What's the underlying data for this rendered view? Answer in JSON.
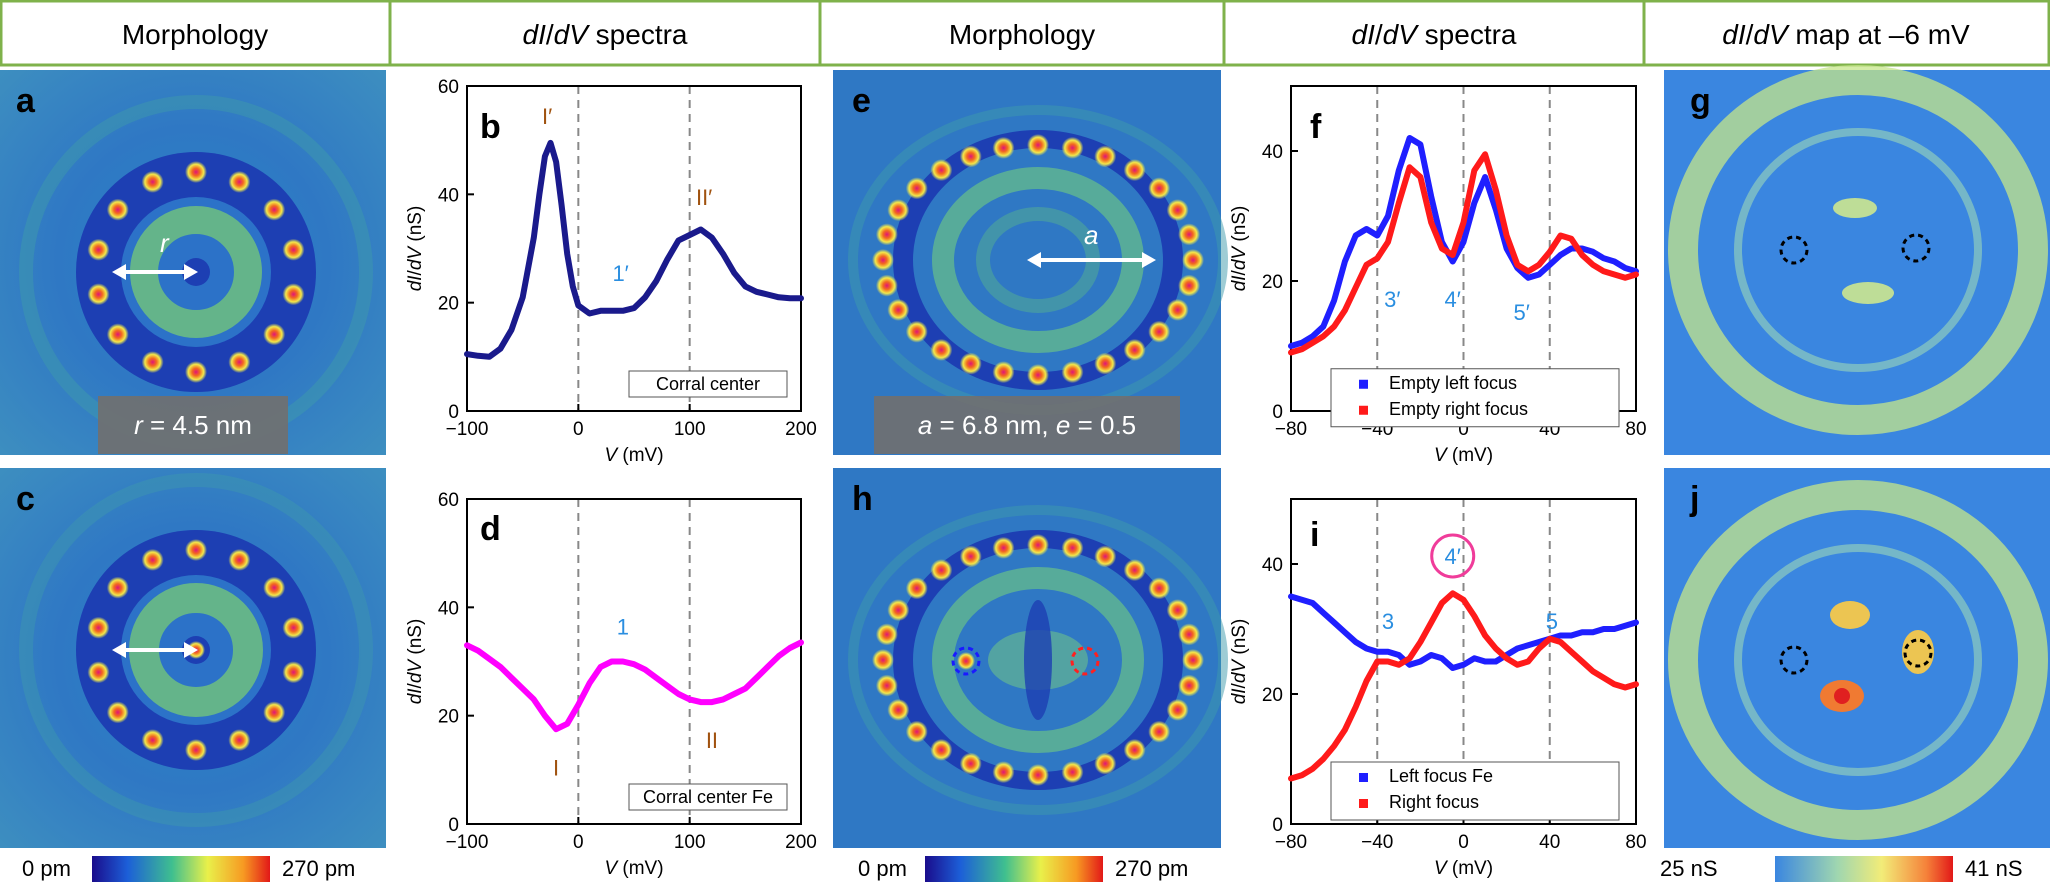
{
  "headers": {
    "col1": "Morphology",
    "col2_a": "dI",
    "col2_b": "/",
    "col2_c": "dV",
    "col2_d": " spectra",
    "col3": "Morphology",
    "col4_a": "dI",
    "col4_b": "/",
    "col4_c": "dV",
    "col4_d": " spectra",
    "col5_a": "dI",
    "col5_b": "/",
    "col5_c": "dV",
    "col5_d": " map at –6 mV"
  },
  "panels": {
    "a": "a",
    "b": "b",
    "c": "c",
    "d": "d",
    "e": "e",
    "f": "f",
    "g": "g",
    "h": "h",
    "i": "i",
    "j": "j"
  },
  "image_labels": {
    "a_r": "r",
    "a_box_1": "r",
    "a_box_2": " = 4.5 nm",
    "e_a": "a",
    "e_box_1": "a",
    "e_box_2": " = 6.8 nm, ",
    "e_box_3": "e",
    "e_box_4": " = 0.5"
  },
  "colorbars": {
    "topo_left": {
      "min": "0 pm",
      "max": "270 pm"
    },
    "topo_mid": {
      "min": "0 pm",
      "max": "270 pm"
    },
    "map": {
      "min": "25 nS",
      "max": "41 nS"
    }
  },
  "chart_data": [
    {
      "id": "b",
      "type": "line",
      "xlabel_italic": "V",
      "xlabel_unit": " (mV)",
      "ylabel_a": "dI",
      "ylabel_b": "/",
      "ylabel_c": "dV",
      "ylabel_unit": " (nS)",
      "xlim": [
        -100,
        200
      ],
      "ylim": [
        0,
        60
      ],
      "xticks": [
        -100,
        0,
        100,
        200
      ],
      "xtick_labels": [
        "−100",
        "0",
        "100",
        "200"
      ],
      "yticks": [
        0,
        20,
        40,
        60
      ],
      "ytick_labels": [
        "0",
        "20",
        "40",
        "60"
      ],
      "vlines": [
        0,
        100
      ],
      "legend": "Corral center",
      "annotations": [
        {
          "text": "I′",
          "x": -28,
          "y": 53,
          "color": "brown"
        },
        {
          "text": "II′",
          "x": 113,
          "y": 38,
          "color": "brown"
        },
        {
          "text": "1′",
          "x": 38,
          "y": 24,
          "color": "blue"
        }
      ],
      "series": [
        {
          "name": "Corral center",
          "color": "#1a1a8c",
          "x": [
            -100,
            -90,
            -80,
            -70,
            -60,
            -50,
            -40,
            -35,
            -30,
            -25,
            -20,
            -15,
            -10,
            -5,
            0,
            10,
            20,
            30,
            40,
            50,
            60,
            70,
            80,
            90,
            100,
            110,
            120,
            130,
            140,
            150,
            160,
            170,
            180,
            190,
            200
          ],
          "y": [
            10.5,
            10.2,
            10,
            11.5,
            15,
            21,
            32,
            40,
            47,
            49.5,
            46,
            38,
            29,
            23,
            19.5,
            18,
            18.5,
            18.5,
            18.5,
            19,
            21,
            24,
            28,
            31.5,
            32.5,
            33.5,
            32,
            29,
            25.5,
            23,
            22,
            21.5,
            21,
            20.8,
            20.8
          ]
        }
      ]
    },
    {
      "id": "d",
      "type": "line",
      "xlabel_italic": "V",
      "xlabel_unit": " (mV)",
      "ylabel_a": "dI",
      "ylabel_b": "/",
      "ylabel_c": "dV",
      "ylabel_unit": " (nS)",
      "xlim": [
        -100,
        200
      ],
      "ylim": [
        0,
        60
      ],
      "xticks": [
        -100,
        0,
        100,
        200
      ],
      "xtick_labels": [
        "−100",
        "0",
        "100",
        "200"
      ],
      "yticks": [
        0,
        20,
        40,
        60
      ],
      "ytick_labels": [
        "0",
        "20",
        "40",
        "60"
      ],
      "vlines": [
        0,
        100
      ],
      "legend": "Corral center Fe",
      "annotations": [
        {
          "text": "I",
          "x": -20,
          "y": 9,
          "color": "brown"
        },
        {
          "text": "1",
          "x": 40,
          "y": 35,
          "color": "blue"
        },
        {
          "text": "II",
          "x": 120,
          "y": 14,
          "color": "brown"
        }
      ],
      "series": [
        {
          "name": "Corral center Fe",
          "color": "#ff00ff",
          "x": [
            -100,
            -90,
            -80,
            -70,
            -60,
            -50,
            -40,
            -30,
            -20,
            -10,
            0,
            10,
            20,
            30,
            40,
            50,
            60,
            70,
            80,
            90,
            100,
            110,
            120,
            130,
            140,
            150,
            160,
            170,
            180,
            190,
            200
          ],
          "y": [
            33,
            32,
            30.5,
            29,
            27,
            25,
            23,
            20,
            17.5,
            18.5,
            22,
            26,
            29,
            30,
            30,
            29.5,
            28.5,
            27,
            25.5,
            24,
            23,
            22.5,
            22.5,
            23,
            24,
            25,
            27,
            29,
            31,
            32.5,
            33.5
          ]
        }
      ]
    },
    {
      "id": "f",
      "type": "line",
      "xlabel_italic": "V",
      "xlabel_unit": " (mV)",
      "ylabel_a": "dI",
      "ylabel_b": "/",
      "ylabel_c": "dV",
      "ylabel_unit": " (nS)",
      "xlim": [
        -80,
        80
      ],
      "ylim": [
        0,
        50
      ],
      "xticks": [
        -80,
        -40,
        0,
        40,
        80
      ],
      "xtick_labels": [
        "−80",
        "−40",
        "0",
        "40",
        "80"
      ],
      "yticks": [
        0,
        20,
        40
      ],
      "ytick_labels": [
        "0",
        "20",
        "40"
      ],
      "vlines": [
        -40,
        0,
        40
      ],
      "annotations": [
        {
          "text": "3′",
          "x": -33,
          "y": 16,
          "color": "blue"
        },
        {
          "text": "4′",
          "x": -5,
          "y": 16,
          "color": "blue"
        },
        {
          "text": "5′",
          "x": 27,
          "y": 14,
          "color": "blue"
        }
      ],
      "series": [
        {
          "name": "Empty left focus",
          "color": "#1f1fff",
          "x": [
            -80,
            -75,
            -70,
            -65,
            -60,
            -55,
            -50,
            -45,
            -40,
            -35,
            -30,
            -25,
            -20,
            -15,
            -10,
            -5,
            0,
            5,
            10,
            15,
            20,
            25,
            30,
            35,
            40,
            45,
            50,
            55,
            60,
            65,
            70,
            75,
            80
          ],
          "y": [
            10,
            10.5,
            11.5,
            13,
            17,
            23,
            27,
            28,
            27,
            30,
            37,
            42,
            41,
            33,
            26,
            23,
            26,
            32,
            36,
            31,
            25,
            22,
            20.5,
            21,
            22.5,
            24,
            25,
            25,
            24.5,
            23.5,
            23,
            22,
            21.5
          ]
        },
        {
          "name": "Empty right focus",
          "color": "#ff1a1a",
          "x": [
            -80,
            -75,
            -70,
            -65,
            -60,
            -55,
            -50,
            -45,
            -40,
            -35,
            -30,
            -25,
            -20,
            -15,
            -10,
            -5,
            0,
            5,
            10,
            15,
            20,
            25,
            30,
            35,
            40,
            45,
            50,
            55,
            60,
            65,
            70,
            75,
            80
          ],
          "y": [
            9,
            9.5,
            10.5,
            11.5,
            13,
            15.5,
            19,
            22.5,
            23.5,
            26,
            32,
            37.5,
            36,
            29,
            25,
            24,
            29,
            37,
            39.5,
            34,
            27,
            22.5,
            21.5,
            22.5,
            24.5,
            27,
            26.5,
            24,
            22.5,
            21.5,
            21,
            20.5,
            21
          ]
        }
      ],
      "legend_items": [
        "Empty left focus",
        "Empty right focus"
      ]
    },
    {
      "id": "i",
      "type": "line",
      "xlabel_italic": "V",
      "xlabel_unit": " (mV)",
      "ylabel_a": "dI",
      "ylabel_b": "/",
      "ylabel_c": "dV",
      "ylabel_unit": " (nS)",
      "xlim": [
        -80,
        80
      ],
      "ylim": [
        0,
        50
      ],
      "xticks": [
        -80,
        -40,
        0,
        40,
        80
      ],
      "xtick_labels": [
        "−80",
        "−40",
        "0",
        "40",
        "80"
      ],
      "yticks": [
        0,
        20,
        40
      ],
      "ytick_labels": [
        "0",
        "20",
        "40"
      ],
      "vlines": [
        -40,
        0,
        40
      ],
      "annotations": [
        {
          "text": "3",
          "x": -35,
          "y": 30,
          "color": "blue"
        },
        {
          "text": "4′",
          "x": -5,
          "y": 40,
          "color": "blue",
          "circled": true
        },
        {
          "text": "5",
          "x": 41,
          "y": 30,
          "color": "blue"
        }
      ],
      "series": [
        {
          "name": "Left focus Fe",
          "color": "#1f1fff",
          "x": [
            -80,
            -75,
            -70,
            -65,
            -60,
            -55,
            -50,
            -45,
            -40,
            -35,
            -30,
            -25,
            -20,
            -15,
            -10,
            -5,
            0,
            5,
            10,
            15,
            20,
            25,
            30,
            35,
            40,
            45,
            50,
            55,
            60,
            65,
            70,
            75,
            80
          ],
          "y": [
            35,
            34.5,
            34,
            32.5,
            31,
            29.5,
            28,
            27,
            26.5,
            26.5,
            26,
            24.5,
            25,
            26,
            25.5,
            24,
            24.5,
            25.5,
            25,
            25,
            26,
            27,
            27.5,
            28,
            28.5,
            29,
            29,
            29.5,
            29.5,
            30,
            30,
            30.5,
            31
          ]
        },
        {
          "name": "Right focus",
          "color": "#ff1a1a",
          "x": [
            -80,
            -75,
            -70,
            -65,
            -60,
            -55,
            -50,
            -45,
            -40,
            -35,
            -30,
            -25,
            -20,
            -15,
            -10,
            -5,
            0,
            5,
            10,
            15,
            20,
            25,
            30,
            35,
            40,
            45,
            50,
            55,
            60,
            65,
            70,
            75,
            80
          ],
          "y": [
            7,
            7.5,
            8.5,
            10,
            12,
            14.5,
            18,
            22,
            25,
            25,
            24.5,
            25.5,
            28,
            31,
            34,
            35.5,
            34.5,
            32,
            29,
            27,
            25.5,
            24.5,
            25,
            27,
            28.5,
            28,
            26.5,
            25,
            23.5,
            22.5,
            21.5,
            21,
            21.5
          ]
        }
      ],
      "legend_items": [
        "Left focus Fe",
        "Right focus"
      ]
    }
  ],
  "colors": {
    "header_border": "#7fb24b",
    "topo_bg": "#2f78c4",
    "map_bg": "#3a86e0"
  }
}
